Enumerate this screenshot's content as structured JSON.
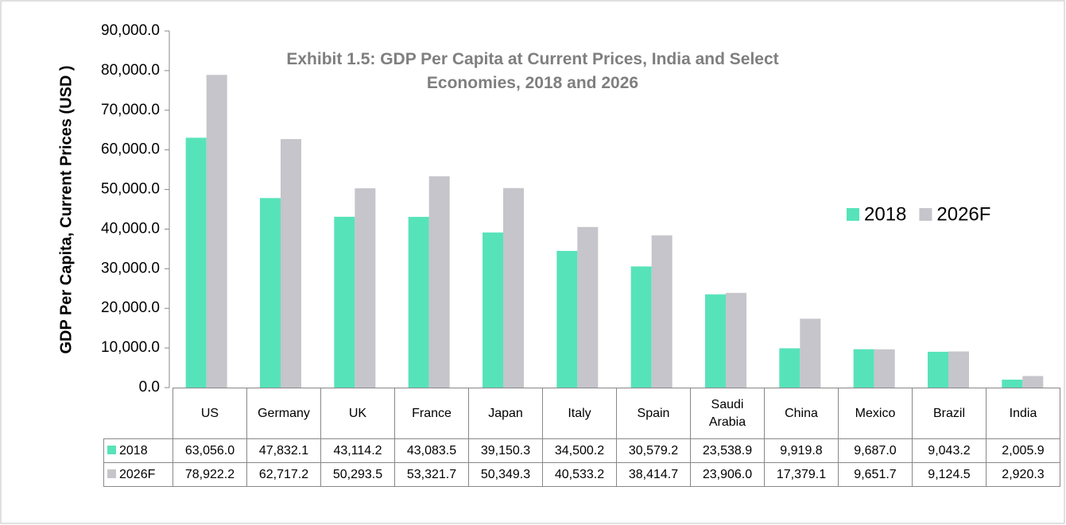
{
  "chart_data": {
    "type": "bar",
    "title": "Exhibit 1.5: GDP Per Capita at Current Prices, India and Select Economies, 2018 and 2026",
    "ylabel": "GDP Per Capita, Current Prices (USD )",
    "categories": [
      "US",
      "Germany",
      "UK",
      "France",
      "Japan",
      "Italy",
      "Spain",
      "Saudi Arabia",
      "China",
      "Mexico",
      "Brazil",
      "India"
    ],
    "series": [
      {
        "name": "2018",
        "color": "#57e3b9",
        "values": [
          63056.0,
          47832.1,
          43114.2,
          43083.5,
          39150.3,
          34500.2,
          30579.2,
          23538.9,
          9919.8,
          9687.0,
          9043.2,
          2005.9
        ],
        "value_labels": [
          "63,056.0",
          "47,832.1",
          "43,114.2",
          "43,083.5",
          "39,150.3",
          "34,500.2",
          "30,579.2",
          "23,538.9",
          "9,919.8",
          "9,687.0",
          "9,043.2",
          "2,005.9"
        ]
      },
      {
        "name": "2026F",
        "color": "#c5c5cb",
        "values": [
          78922.2,
          62717.2,
          50293.5,
          53321.7,
          50349.3,
          40533.2,
          38414.7,
          23906.0,
          17379.1,
          9651.7,
          9124.5,
          2920.3
        ],
        "value_labels": [
          "78,922.2",
          "62,717.2",
          "50,293.5",
          "53,321.7",
          "50,349.3",
          "40,533.2",
          "38,414.7",
          "23,906.0",
          "17,379.1",
          "9,651.7",
          "9,124.5",
          "2,920.3"
        ]
      }
    ],
    "ylim": [
      0,
      90000
    ],
    "yticks": [
      {
        "value": 0,
        "label": "0.0"
      },
      {
        "value": 10000,
        "label": "10,000.0"
      },
      {
        "value": 20000,
        "label": "20,000.0"
      },
      {
        "value": 30000,
        "label": "30,000.0"
      },
      {
        "value": 40000,
        "label": "40,000.0"
      },
      {
        "value": 50000,
        "label": "50,000.0"
      },
      {
        "value": 60000,
        "label": "60,000.0"
      },
      {
        "value": 70000,
        "label": "70,000.0"
      },
      {
        "value": 80000,
        "label": "80,000.0"
      },
      {
        "value": 90000,
        "label": "90,000.0"
      }
    ],
    "grid": false,
    "legend": "right"
  }
}
